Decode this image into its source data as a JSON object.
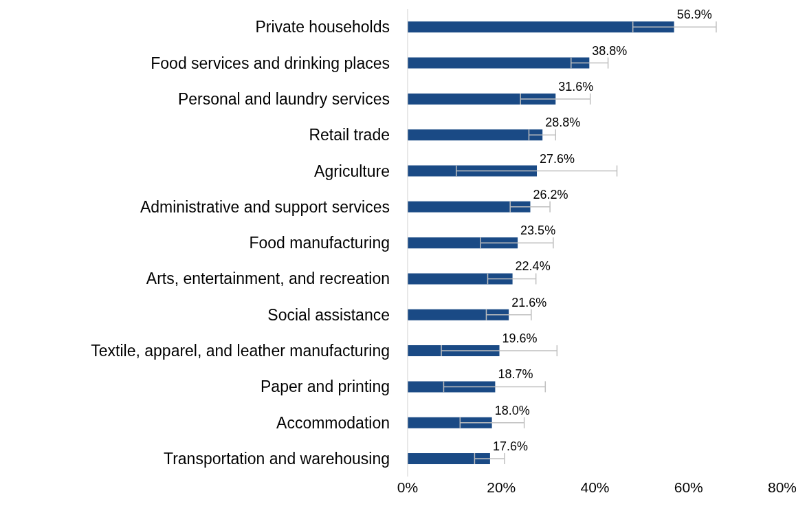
{
  "chart_data": {
    "type": "bar",
    "orientation": "horizontal",
    "categories": [
      "Private households",
      "Food services and drinking places",
      "Personal and laundry services",
      "Retail trade",
      "Agriculture",
      "Administrative and support services",
      "Food manufacturing",
      "Arts, entertainment, and recreation",
      "Social assistance",
      "Textile, apparel, and leather manufacturing",
      "Paper and printing",
      "Accommodation",
      "Transportation and warehousing"
    ],
    "values": [
      56.9,
      38.8,
      31.6,
      28.8,
      27.6,
      26.2,
      23.5,
      22.4,
      21.6,
      19.6,
      18.7,
      18.0,
      17.6
    ],
    "errors": [
      [
        48.1,
        65.9
      ],
      [
        34.9,
        42.8
      ],
      [
        24.1,
        39.0
      ],
      [
        25.9,
        31.6
      ],
      [
        10.4,
        44.7
      ],
      [
        21.9,
        30.4
      ],
      [
        15.6,
        31.1
      ],
      [
        17.1,
        27.4
      ],
      [
        16.8,
        26.4
      ],
      [
        7.2,
        31.9
      ],
      [
        7.7,
        29.4
      ],
      [
        11.2,
        24.9
      ],
      [
        14.3,
        20.7
      ]
    ],
    "value_labels": [
      "56.9%",
      "38.8%",
      "31.6%",
      "28.8%",
      "27.6%",
      "26.2%",
      "23.5%",
      "22.4%",
      "21.6%",
      "19.6%",
      "18.7%",
      "18.0%",
      "17.6%"
    ],
    "color": "#1a4a85",
    "xlim": [
      0,
      80
    ],
    "xticks": [
      {
        "value": 0,
        "label": "0%"
      },
      {
        "value": 20,
        "label": "20%"
      },
      {
        "value": 40,
        "label": "40%"
      },
      {
        "value": 60,
        "label": "60%"
      },
      {
        "value": 80,
        "label": "80%"
      }
    ],
    "grid": false,
    "legend": false
  }
}
